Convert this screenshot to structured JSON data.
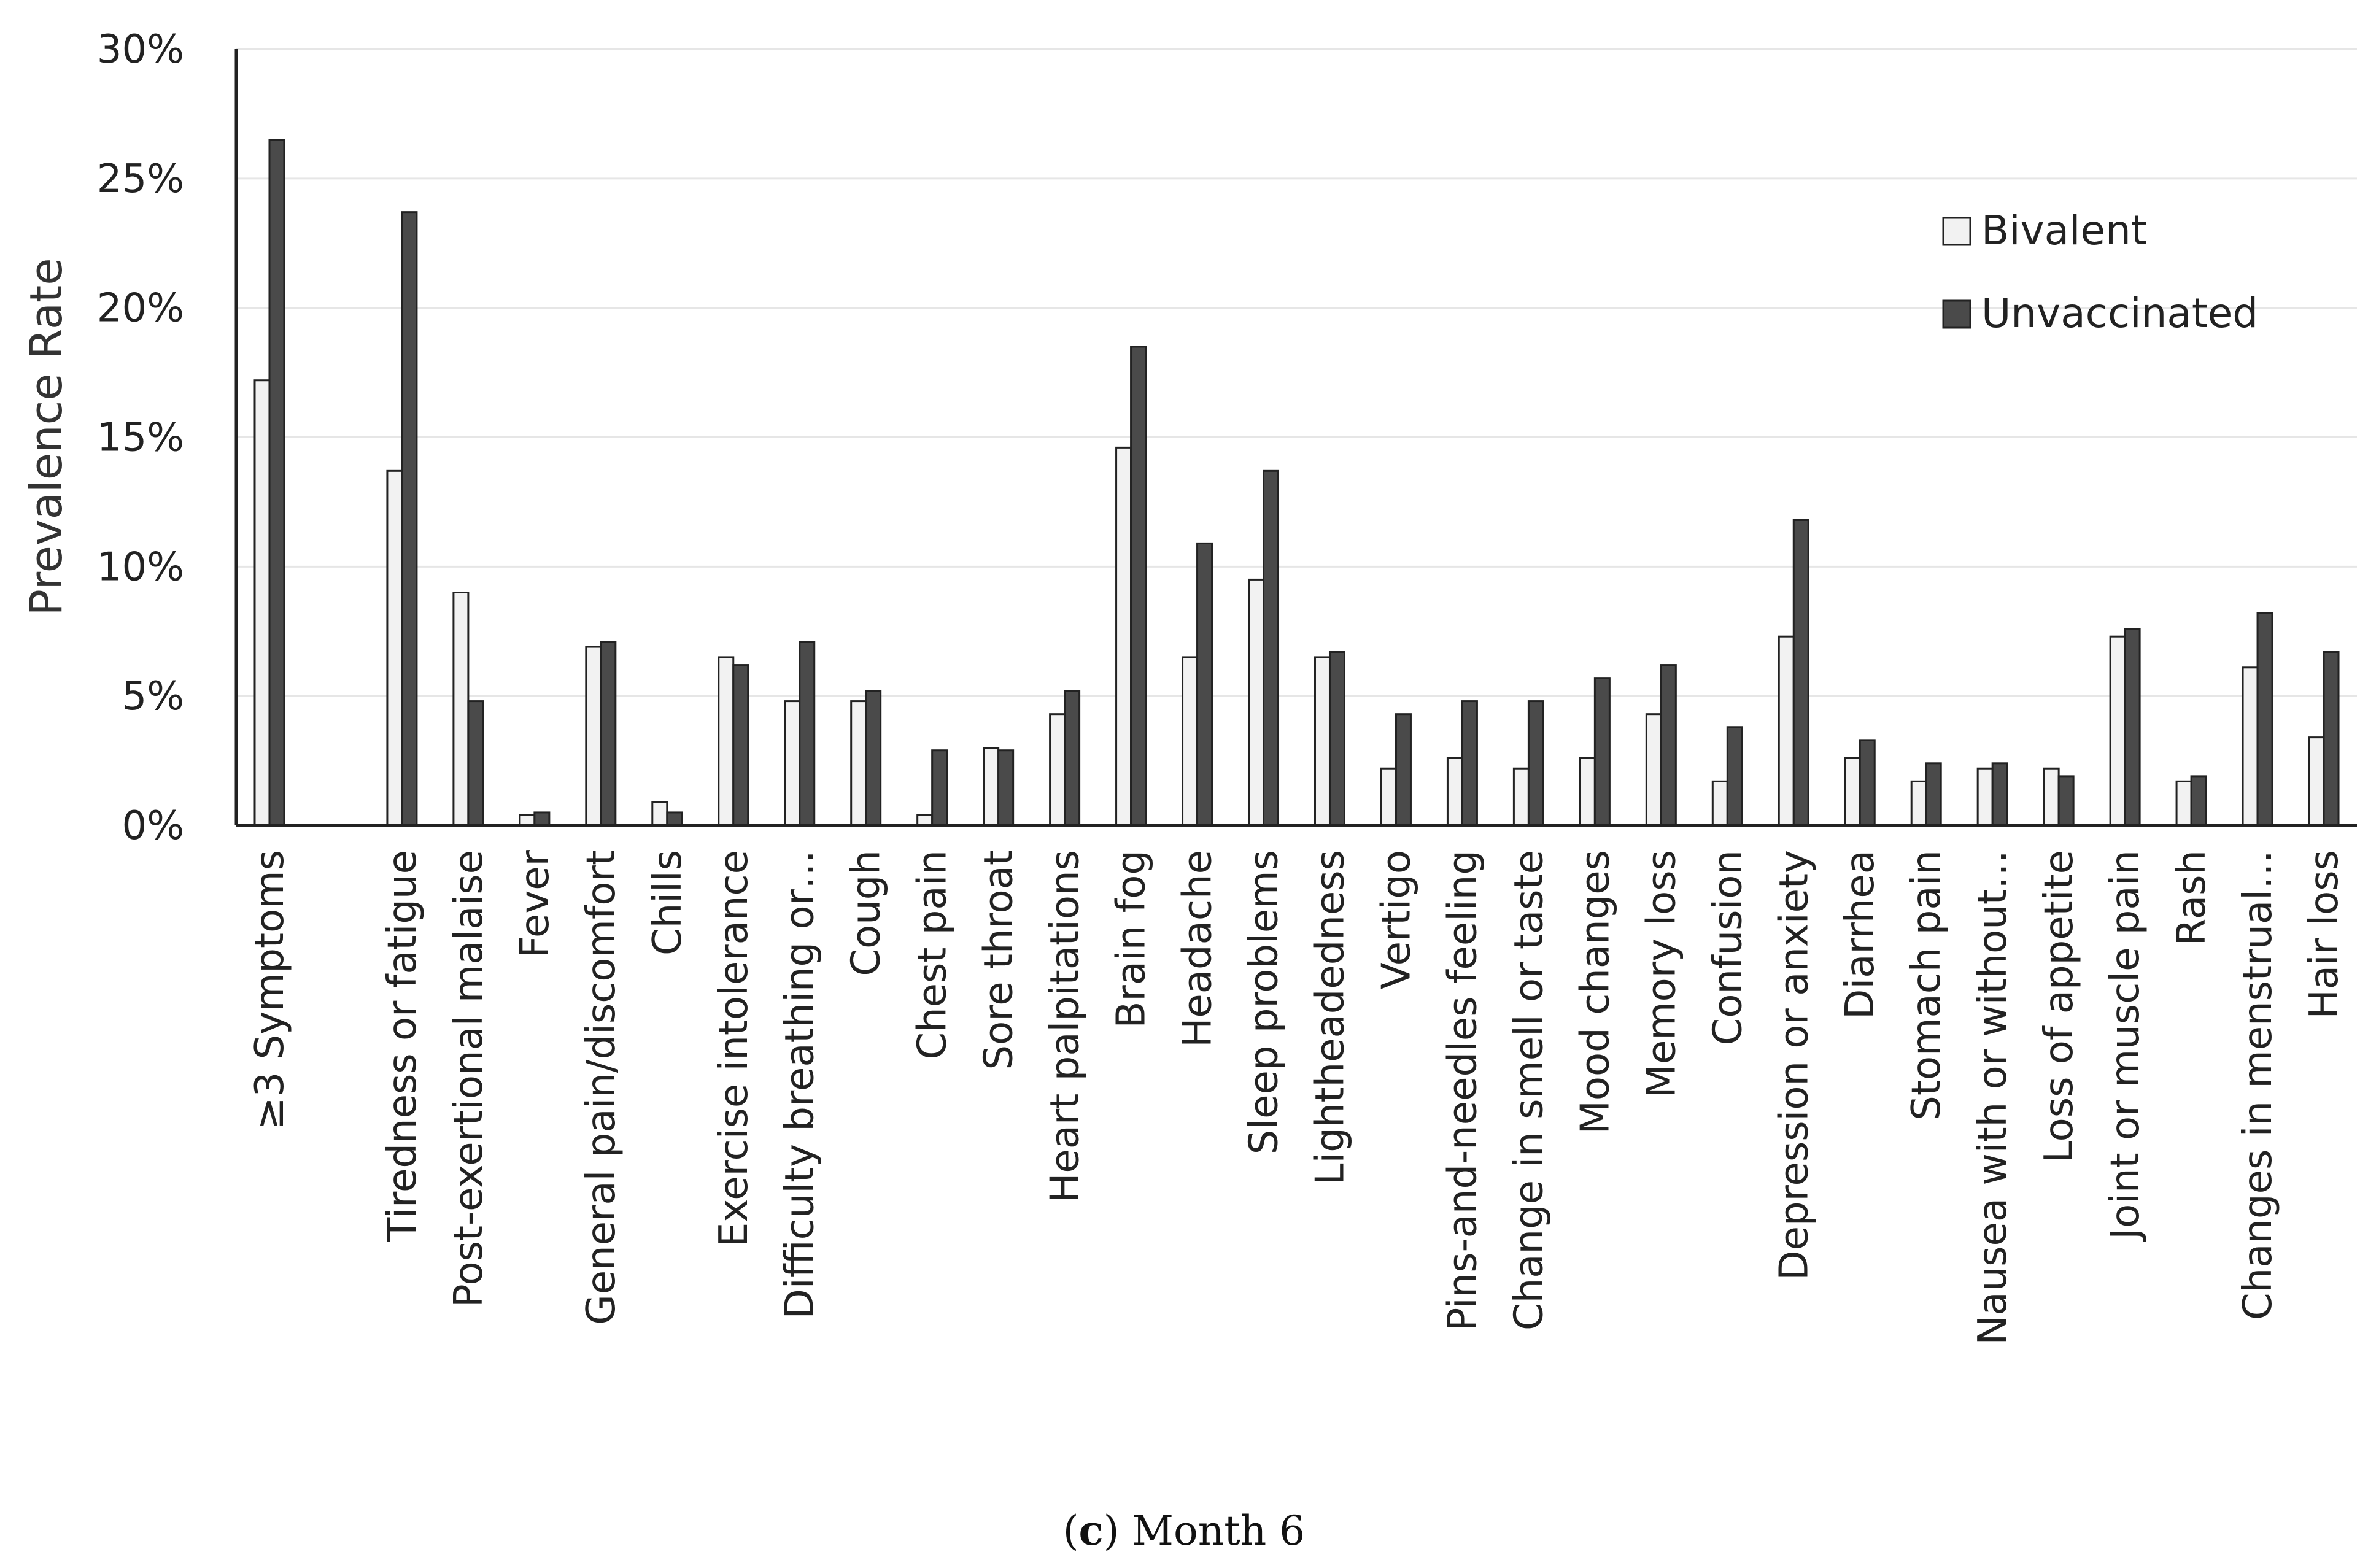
{
  "chart_data": {
    "type": "bar",
    "ylabel": "Prevalence Rate",
    "ylim": [
      0,
      30
    ],
    "yticks": [
      "0%",
      "5%",
      "10%",
      "15%",
      "20%",
      "25%",
      "30%"
    ],
    "ytick_values": [
      0,
      5,
      10,
      15,
      20,
      25,
      30
    ],
    "grid": true,
    "legend_position": "top-right",
    "categories": [
      "≥3 Symptoms",
      "",
      "Tiredness or fatigue",
      "Post-exertional malaise",
      "Fever",
      "General pain/discomfort",
      "Chills",
      "Exercise intolerance",
      "Difficulty breathing or…",
      "Cough",
      "Chest pain",
      "Sore throat",
      "Heart palpitations",
      "Brain fog",
      "Headache",
      "Sleep problems",
      "Lightheadedness",
      "Vertigo",
      "Pins-and-needles feeling",
      "Change in smell or taste",
      "Mood changes",
      "Memory loss",
      "Confusion",
      "Depression or anxiety",
      "Diarrhea",
      "Stomach pain",
      "Nausea with or without…",
      "Loss of appetite",
      "Joint or muscle pain",
      "Rash",
      "Changes in menstrual…",
      "Hair loss"
    ],
    "series": [
      {
        "name": "Bivalent",
        "color": "#f2f2f2",
        "values": [
          17.2,
          null,
          13.7,
          9.0,
          0.4,
          6.9,
          0.9,
          6.5,
          4.8,
          4.8,
          0.4,
          3.0,
          4.3,
          14.6,
          6.5,
          9.5,
          6.5,
          2.2,
          2.6,
          2.2,
          2.6,
          4.3,
          1.7,
          7.3,
          2.6,
          1.7,
          2.2,
          2.2,
          7.3,
          1.7,
          6.1,
          3.4
        ]
      },
      {
        "name": "Unvaccinated",
        "color": "#4a4a4a",
        "values": [
          26.5,
          null,
          23.7,
          4.8,
          0.5,
          7.1,
          0.5,
          6.2,
          7.1,
          5.2,
          2.9,
          2.9,
          5.2,
          18.5,
          10.9,
          13.7,
          6.7,
          4.3,
          4.8,
          4.8,
          5.7,
          6.2,
          3.8,
          11.8,
          3.3,
          2.4,
          2.4,
          1.9,
          7.6,
          1.9,
          8.2,
          6.7
        ]
      }
    ]
  },
  "caption": {
    "letter": "c",
    "text": "Month 6"
  }
}
